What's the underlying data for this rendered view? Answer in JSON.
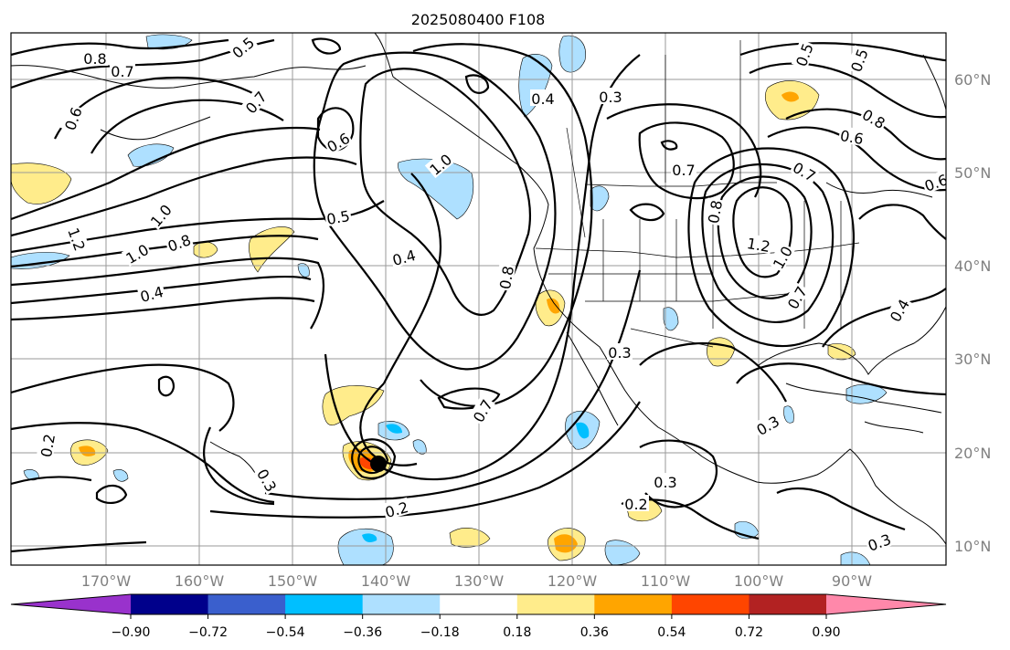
{
  "title": "2025080400 F108",
  "lat_labels": [
    "60°N",
    "50°N",
    "40°N",
    "30°N",
    "20°N",
    "10°N"
  ],
  "lon_labels": [
    "170°W",
    "160°W",
    "150°W",
    "140°W",
    "130°W",
    "120°W",
    "110°W",
    "100°W",
    "90°W"
  ],
  "contour_labels": [
    "0.8",
    "0.7",
    "0.5",
    "0.6",
    "0.7",
    "0.4",
    "0.3",
    "1.0",
    "0.8",
    "0.6",
    "0.6",
    "1.0",
    "0.7",
    "0.7",
    "1.2",
    "1.0",
    "0.8",
    "0.6",
    "0.5",
    "0.4",
    "0.4",
    "0.8",
    "0.8",
    "1.2",
    "1.0",
    "0.7",
    "0.4",
    "0.3",
    "0.7",
    "0.3",
    "0.2",
    "0.3",
    "0.3",
    "0.2",
    "0.2",
    "0.3",
    "0.5",
    "0.5"
  ],
  "colorbar": {
    "ticks": [
      "−0.90",
      "−0.72",
      "−0.54",
      "−0.36",
      "−0.18",
      "0.18",
      "0.36",
      "0.54",
      "0.72",
      "0.90"
    ],
    "colors": [
      "#9932cc",
      "#00008b",
      "#3a5fcd",
      "#00bfff",
      "#aee0ff",
      "#ffffff",
      "#ffec8b",
      "#ffa500",
      "#ff4500",
      "#b22222",
      "#ff88aa"
    ]
  }
}
